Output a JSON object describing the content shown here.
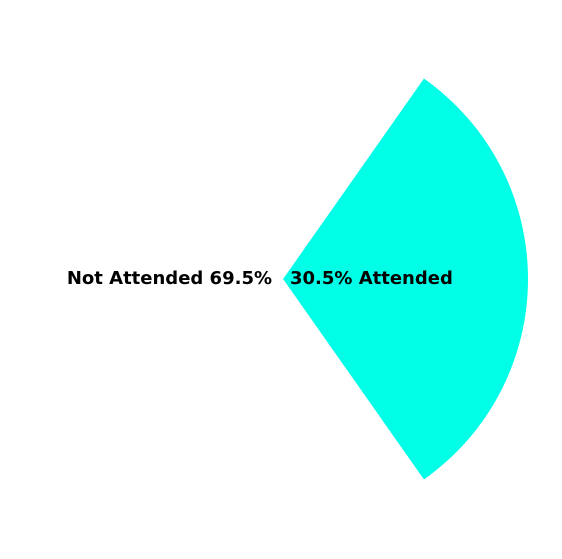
{
  "chart_data": {
    "type": "pie",
    "title": "",
    "slices": [
      {
        "label": "Attended",
        "value": 30.5,
        "color": "#00ffe6",
        "display": "30.5% Attended"
      },
      {
        "label": "Not Attended",
        "value": 69.5,
        "color": "#ffffff",
        "display": "Not Attended 69.5%"
      }
    ],
    "start_angle_deg": -54.9,
    "legend": "none"
  }
}
